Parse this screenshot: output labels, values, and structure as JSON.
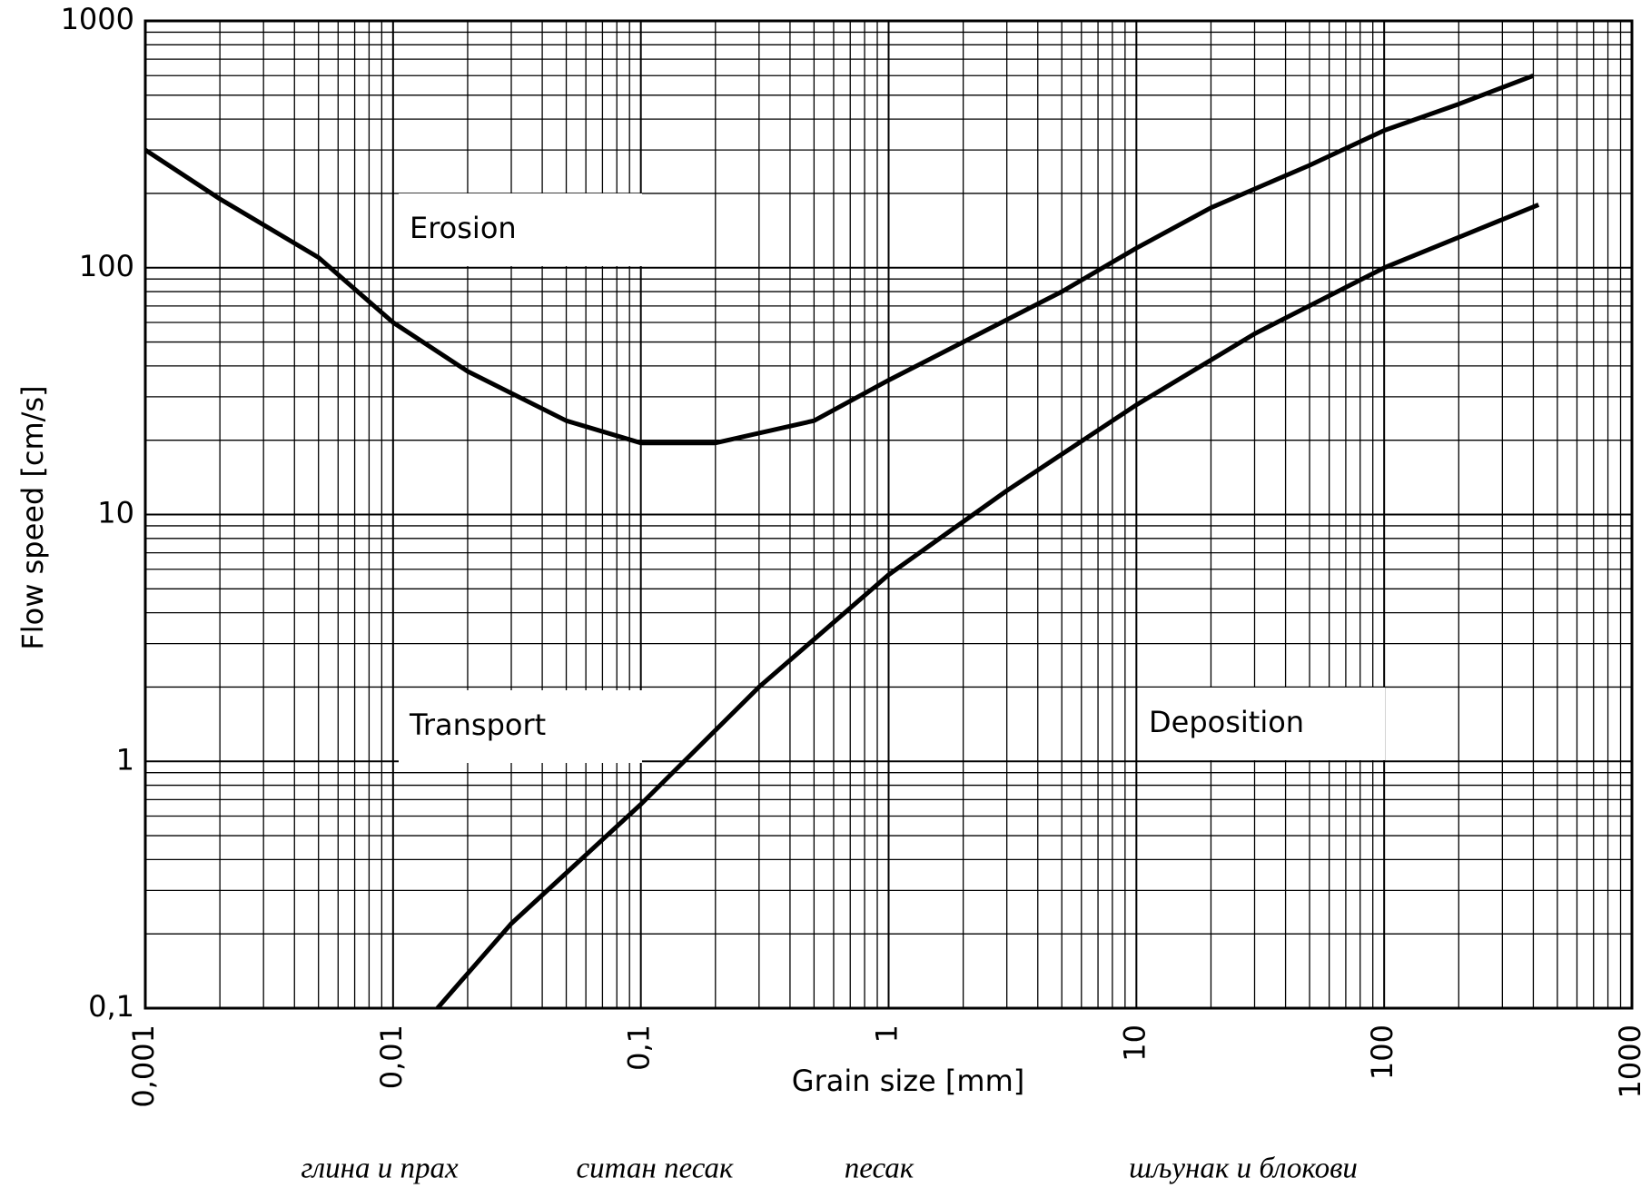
{
  "chart_data": {
    "type": "line",
    "xlabel": "Grain size [mm]",
    "ylabel": "Flow speed [cm/s]",
    "xscale": "log",
    "yscale": "log",
    "grid": true,
    "minor_grid": true,
    "xlim": [
      0.001,
      1000
    ],
    "ylim": [
      0.1,
      1000
    ],
    "xticks": [
      {
        "value": 0.001,
        "label": "0,001"
      },
      {
        "value": 0.01,
        "label": "0,01"
      },
      {
        "value": 0.1,
        "label": "0,1"
      },
      1,
      10,
      100,
      1000
    ],
    "yticks": [
      {
        "value": 0.1,
        "label": "0,1"
      },
      1,
      10,
      100,
      1000
    ],
    "series": [
      {
        "color": "#000000",
        "x": [
          0.001,
          0.002,
          0.005,
          0.01,
          0.02,
          0.05,
          0.1,
          0.2,
          0.5,
          1,
          2,
          5,
          10,
          20,
          50,
          100,
          200,
          400
        ],
        "values": [
          300,
          190,
          110,
          60,
          38,
          24,
          19.5,
          19.5,
          24,
          35,
          50,
          80,
          120,
          175,
          260,
          360,
          460,
          600
        ]
      },
      {
        "color": "#000000",
        "x": [
          0.0151,
          0.03,
          0.1,
          0.3,
          1,
          3,
          10,
          30,
          100,
          420
        ],
        "values": [
          0.1,
          0.22,
          0.67,
          2.0,
          5.7,
          12.5,
          27.8,
          54,
          100,
          180
        ]
      }
    ],
    "annotations": [
      "Erosion",
      "Transport",
      "Deposition"
    ],
    "footnotes": [
      "глина и прах",
      "ситан песак",
      "песак",
      "шљунак и блокови"
    ]
  }
}
